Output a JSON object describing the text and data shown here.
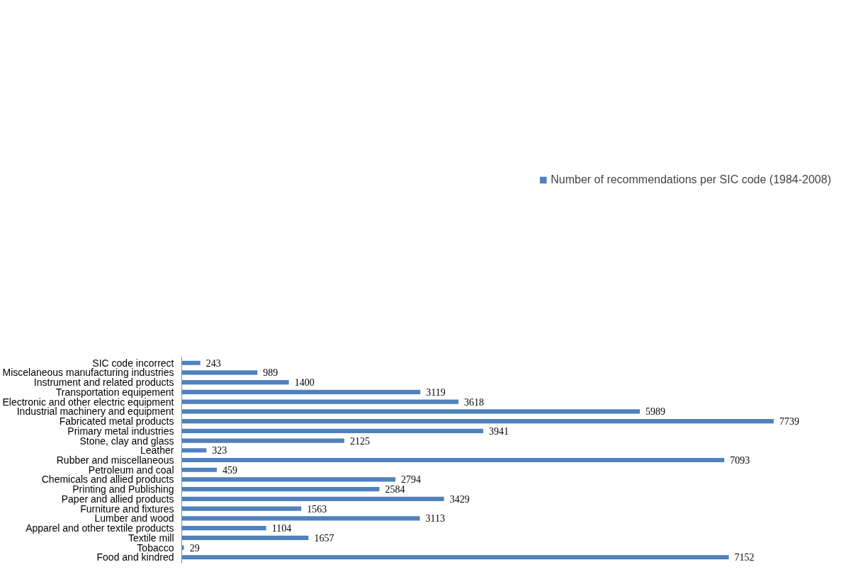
{
  "chart_data": {
    "type": "bar",
    "orientation": "horizontal",
    "data_labels": true,
    "legend": "top",
    "grid": false,
    "categories": [
      "SIC code incorrect",
      "Miscelaneous manufacturing industries",
      "Instrument and related products",
      "Transportation equipement",
      "Electronic and other electric equipment",
      "Industrial machinery and equipment",
      "Fabricated metal products",
      "Primary metal industries",
      "Stone, clay and glass",
      "Leather",
      "Rubber and miscellaneous",
      "Petroleum and coal",
      "Chemicals and allied products",
      "Printing and Publishing",
      "Paper and allied products",
      "Furniture and fixtures",
      "Lumber and wood",
      "Apparel and other textile products",
      "Textile mill",
      "Tobacco",
      "Food and kindred"
    ],
    "series": [
      {
        "name": "Number of recommendations per SIC code (1984-2008)",
        "color": "#4f81bd",
        "values": [
          243,
          989,
          1400,
          3119,
          3618,
          5989,
          7739,
          3941,
          2125,
          323,
          7093,
          459,
          2794,
          2584,
          3429,
          1563,
          3113,
          1104,
          1657,
          29,
          7152
        ]
      }
    ]
  }
}
